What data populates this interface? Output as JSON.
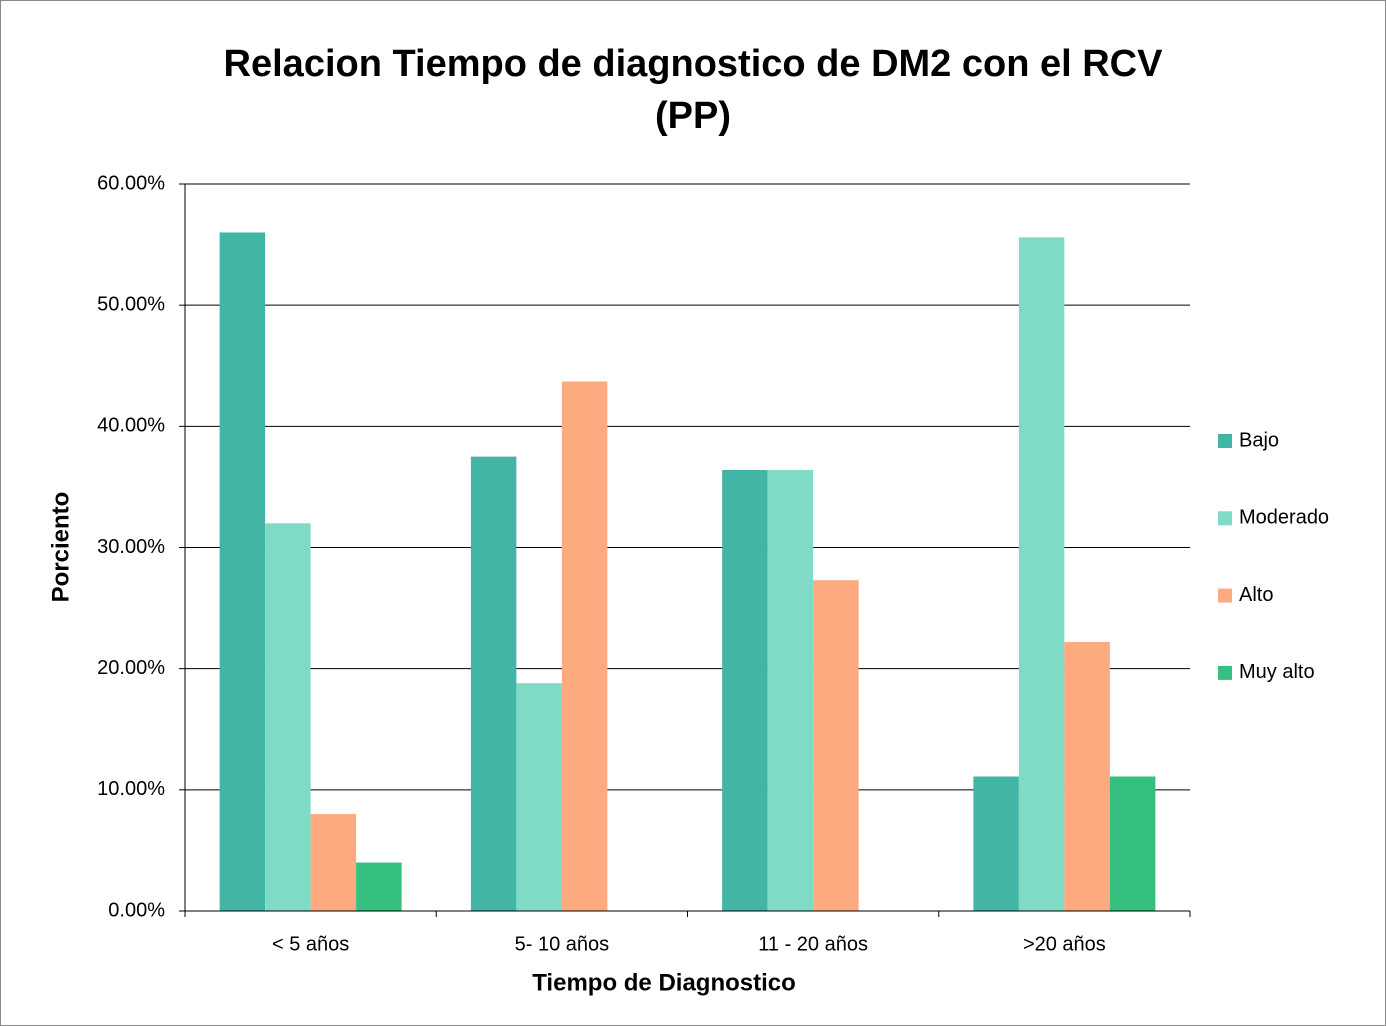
{
  "chart_data": {
    "type": "bar",
    "title": "Relacion Tiempo de diagnostico de DM2 con el RCV (PP)",
    "x_label": "Tiempo de Diagnostico",
    "y_label": "Porciento",
    "categories": [
      "< 5 años",
      "5- 10 años",
      "11 - 20 años",
      ">20 años"
    ],
    "series": [
      {
        "name": "Bajo",
        "color": "#43b5a6",
        "values": [
          56.0,
          37.5,
          36.4,
          11.1
        ]
      },
      {
        "name": "Moderado",
        "color": "#80dbc6",
        "values": [
          32.0,
          18.8,
          36.4,
          55.6
        ]
      },
      {
        "name": "Alto",
        "color": "#fdaa80",
        "values": [
          8.0,
          43.7,
          27.3,
          22.2
        ]
      },
      {
        "name": "Muy alto",
        "color": "#35c080",
        "values": [
          4.0,
          0,
          0,
          11.1
        ]
      }
    ],
    "ylim": [
      0,
      60
    ],
    "yticks": [
      {
        "value": 0,
        "label": "0.00%"
      },
      {
        "value": 10,
        "label": "10.00%"
      },
      {
        "value": 20,
        "label": "20.00%"
      },
      {
        "value": 30,
        "label": "30.00%"
      },
      {
        "value": 40,
        "label": "40.00%"
      },
      {
        "value": 50,
        "label": "50.00%"
      },
      {
        "value": 60,
        "label": "60.00%"
      }
    ],
    "grid": true,
    "legend": "right"
  }
}
